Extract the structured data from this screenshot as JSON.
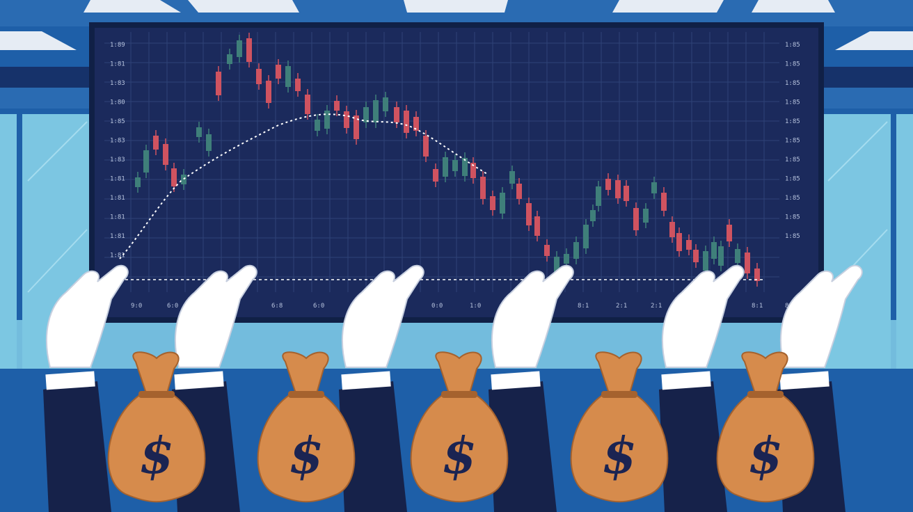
{
  "colors": {
    "wall": "#1e5fa8",
    "ceiling_panel": "#e6ecf4",
    "window_glass": "#7cc6e2",
    "board_bg": "#1b2a5c",
    "board_frame": "#102046",
    "grid": "#2f4377",
    "candle_up": "#3f7f7a",
    "candle_down": "#cf5360",
    "trend_line": "#ffffff",
    "glove": "#ffffff",
    "sleeve": "#16224a",
    "money_bag": "#d68b4c",
    "money_bag_dark": "#a5622e",
    "dollar_sign": "#1b2452"
  },
  "scene": {
    "subject": "candlestick-market-board",
    "hand_count": 6,
    "money_bag_count": 5
  },
  "board": {
    "y_tick_labels_left": [
      "1:89",
      "1:81",
      "1:83",
      "1:80",
      "1:85",
      "1:83",
      "1:83",
      "1:81",
      "1:81",
      "1:81",
      "1:81",
      "1:81"
    ],
    "y_tick_labels_right": [
      "1:85",
      "1:85",
      "1:85",
      "1:85",
      "1:85",
      "1:85",
      "1:85",
      "1:85",
      "1:85",
      "1:85",
      "1:85"
    ],
    "x_tick_labels": [
      "9:0",
      "6:0",
      "6:8",
      "6:0",
      "0:0",
      "1:0",
      "8:1",
      "2:1",
      "2:1",
      "8:1",
      "8:8"
    ]
  },
  "money_bags": [
    {
      "symbol": "$"
    },
    {
      "symbol": "$"
    },
    {
      "symbol": "$"
    },
    {
      "symbol": "$"
    },
    {
      "symbol": "$"
    }
  ]
}
